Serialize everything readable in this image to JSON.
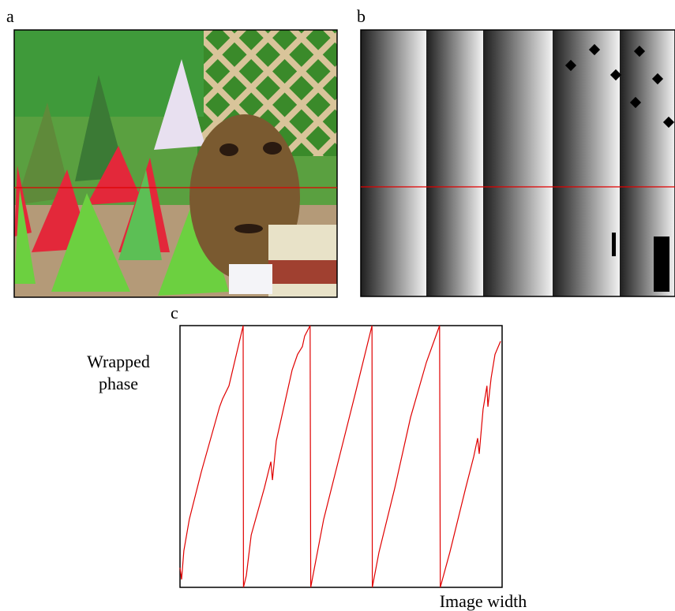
{
  "panel_labels": [
    "a",
    "b",
    "c"
  ],
  "chart_data": {
    "type": "line",
    "x_label": "Image width",
    "y_label": "Wrapped phase",
    "color": "#e00000",
    "xlim": [
      0,
      100
    ],
    "ylim": [
      0,
      1
    ],
    "x": [
      0,
      0.5,
      1.2,
      2.9,
      6.6,
      12.3,
      13.2,
      15.2,
      19.6,
      19.7,
      20.6,
      22.1,
      26.2,
      28.2,
      28.7,
      29.9,
      34.8,
      36.5,
      38.0,
      38.7,
      40.4,
      40.6,
      42.2,
      44.6,
      49.5,
      54.4,
      59.6,
      59.7,
      61.8,
      66.7,
      71.6,
      76.5,
      80.6,
      80.8,
      83.8,
      88.7,
      91.2,
      92.4,
      92.9,
      94.1,
      95.3,
      95.6,
      96.6,
      97.8,
      99.5
    ],
    "values": [
      0.075,
      0.03,
      0.14,
      0.26,
      0.44,
      0.69,
      0.72,
      0.77,
      1.0,
      0,
      0.045,
      0.2,
      0.38,
      0.48,
      0.41,
      0.56,
      0.83,
      0.89,
      0.92,
      0.96,
      1.0,
      0,
      0.105,
      0.26,
      0.5,
      0.74,
      1.0,
      0,
      0.135,
      0.38,
      0.65,
      0.86,
      1.0,
      0,
      0.135,
      0.38,
      0.5,
      0.57,
      0.51,
      0.68,
      0.77,
      0.69,
      0.8,
      0.89,
      0.94
    ]
  }
}
